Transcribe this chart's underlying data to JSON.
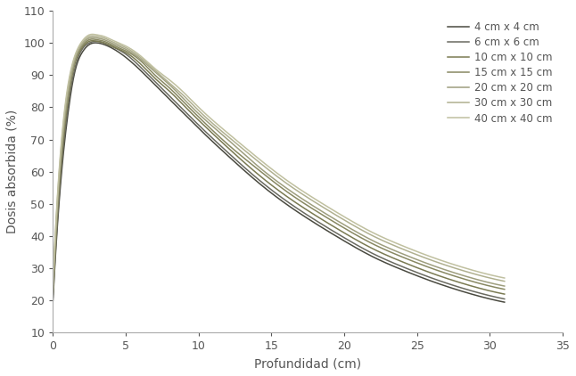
{
  "title": "",
  "xlabel": "Profundidad (cm)",
  "ylabel": "Dosis absorbida (%)",
  "xlim": [
    0,
    35
  ],
  "ylim": [
    10,
    110
  ],
  "xticks": [
    0,
    5,
    10,
    15,
    20,
    25,
    30,
    35
  ],
  "yticks": [
    10,
    20,
    30,
    40,
    50,
    60,
    70,
    80,
    90,
    100,
    110
  ],
  "background_color": "#ffffff",
  "border_color": "#888888",
  "series": [
    {
      "label": "4 cm x 4 cm",
      "color": "#4a4a40",
      "x": [
        0,
        0.5,
        1.0,
        1.5,
        2.0,
        2.5,
        3.0,
        3.5,
        4.0,
        5.0,
        6.0,
        7.0,
        8.0,
        9.0,
        10.0,
        12.0,
        14.0,
        16.0,
        18.0,
        20.0,
        22.0,
        24.0,
        26.0,
        28.0,
        30.0,
        31.0
      ],
      "y": [
        20,
        55,
        77,
        91,
        97,
        99.5,
        100,
        99.5,
        98.5,
        95.5,
        91.5,
        87,
        82.5,
        78,
        73.5,
        65,
        57,
        50,
        44,
        38.5,
        33.5,
        29.5,
        26,
        23,
        20.5,
        19.5
      ]
    },
    {
      "label": "6 cm x 6 cm",
      "color": "#6a6a60",
      "x": [
        0,
        0.5,
        1.0,
        1.5,
        2.0,
        2.5,
        3.0,
        3.5,
        4.0,
        5.0,
        6.0,
        7.0,
        8.0,
        9.0,
        10.0,
        12.0,
        14.0,
        16.0,
        18.0,
        20.0,
        22.0,
        24.0,
        26.0,
        28.0,
        30.0,
        31.0
      ],
      "y": [
        21,
        57,
        79,
        92,
        98,
        100,
        100.5,
        100,
        99,
        96.5,
        92.5,
        88,
        83.5,
        79,
        74.5,
        66,
        58,
        51,
        45,
        39.5,
        34.5,
        30.5,
        27,
        24,
        21.5,
        20.5
      ]
    },
    {
      "label": "10 cm x 10 cm",
      "color": "#7a7a52",
      "x": [
        0,
        0.5,
        1.0,
        1.5,
        2.0,
        2.5,
        3.0,
        3.5,
        4.0,
        5.0,
        6.0,
        7.0,
        8.0,
        9.0,
        10.0,
        12.0,
        14.0,
        16.0,
        18.0,
        20.0,
        22.0,
        24.0,
        26.0,
        28.0,
        30.0,
        31.0
      ],
      "y": [
        22,
        59,
        81,
        93.5,
        98.5,
        100.5,
        100.5,
        100,
        99,
        97,
        93.5,
        89,
        85,
        80.5,
        76,
        67.5,
        59.5,
        52.5,
        46.5,
        41,
        36,
        32,
        28.5,
        25.5,
        23,
        22
      ]
    },
    {
      "label": "15 cm x 15 cm",
      "color": "#888862",
      "x": [
        0,
        0.5,
        1.0,
        1.5,
        2.0,
        2.5,
        3.0,
        3.5,
        4.0,
        5.0,
        6.0,
        7.0,
        8.0,
        9.0,
        10.0,
        12.0,
        14.0,
        16.0,
        18.0,
        20.0,
        22.0,
        24.0,
        26.0,
        28.0,
        30.0,
        31.0
      ],
      "y": [
        23,
        61,
        82,
        94,
        99,
        101,
        101,
        100.5,
        99.5,
        97.5,
        94.5,
        90,
        86,
        81.5,
        77,
        68.5,
        61,
        54,
        48,
        42.5,
        37.5,
        33.5,
        30,
        27,
        24.5,
        23.5
      ]
    },
    {
      "label": "20 cm x 20 cm",
      "color": "#9e9e7e",
      "x": [
        0,
        0.5,
        1.0,
        1.5,
        2.0,
        2.5,
        3.0,
        3.5,
        4.0,
        5.0,
        6.0,
        7.0,
        8.0,
        9.0,
        10.0,
        12.0,
        14.0,
        16.0,
        18.0,
        20.0,
        22.0,
        24.0,
        26.0,
        28.0,
        30.0,
        31.0
      ],
      "y": [
        24,
        62,
        83,
        94.5,
        99.5,
        101.5,
        101.5,
        101,
        100,
        98,
        95,
        91,
        87,
        82.5,
        78,
        70,
        62,
        55,
        49,
        43.5,
        38.5,
        34.5,
        31,
        28,
        25.5,
        24.5
      ]
    },
    {
      "label": "30 cm x 30 cm",
      "color": "#b0b090",
      "x": [
        0,
        0.5,
        1.0,
        1.5,
        2.0,
        2.5,
        3.0,
        3.5,
        4.0,
        5.0,
        6.0,
        7.0,
        8.0,
        9.0,
        10.0,
        12.0,
        14.0,
        16.0,
        18.0,
        20.0,
        22.0,
        24.0,
        26.0,
        28.0,
        30.0,
        31.0
      ],
      "y": [
        25,
        64,
        85,
        95.5,
        100,
        102,
        102,
        101.5,
        100.5,
        98.5,
        95.5,
        91.5,
        87.5,
        83.5,
        79,
        71,
        63.5,
        56.5,
        50.5,
        45,
        40,
        36,
        32.5,
        29.5,
        27,
        26
      ]
    },
    {
      "label": "40 cm x 40 cm",
      "color": "#c0c0a0",
      "x": [
        0,
        0.5,
        1.0,
        1.5,
        2.0,
        2.5,
        3.0,
        3.5,
        4.0,
        5.0,
        6.0,
        7.0,
        8.0,
        9.0,
        10.0,
        12.0,
        14.0,
        16.0,
        18.0,
        20.0,
        22.0,
        24.0,
        26.0,
        28.0,
        30.0,
        31.0
      ],
      "y": [
        26,
        65,
        86,
        96,
        100.5,
        102.5,
        102.5,
        102,
        101,
        99,
        96,
        92,
        88.5,
        84.5,
        80,
        72,
        64.5,
        57.5,
        51.5,
        46,
        41,
        37,
        33.5,
        30.5,
        28,
        27
      ]
    }
  ],
  "figsize": [
    6.46,
    4.22
  ],
  "dpi": 100,
  "legend_fontsize": 8.5,
  "axis_label_fontsize": 10,
  "tick_fontsize": 9,
  "tick_color": "#555555",
  "axis_label_color": "#555555",
  "spine_color": "#aaaaaa",
  "linewidth": 1.1
}
